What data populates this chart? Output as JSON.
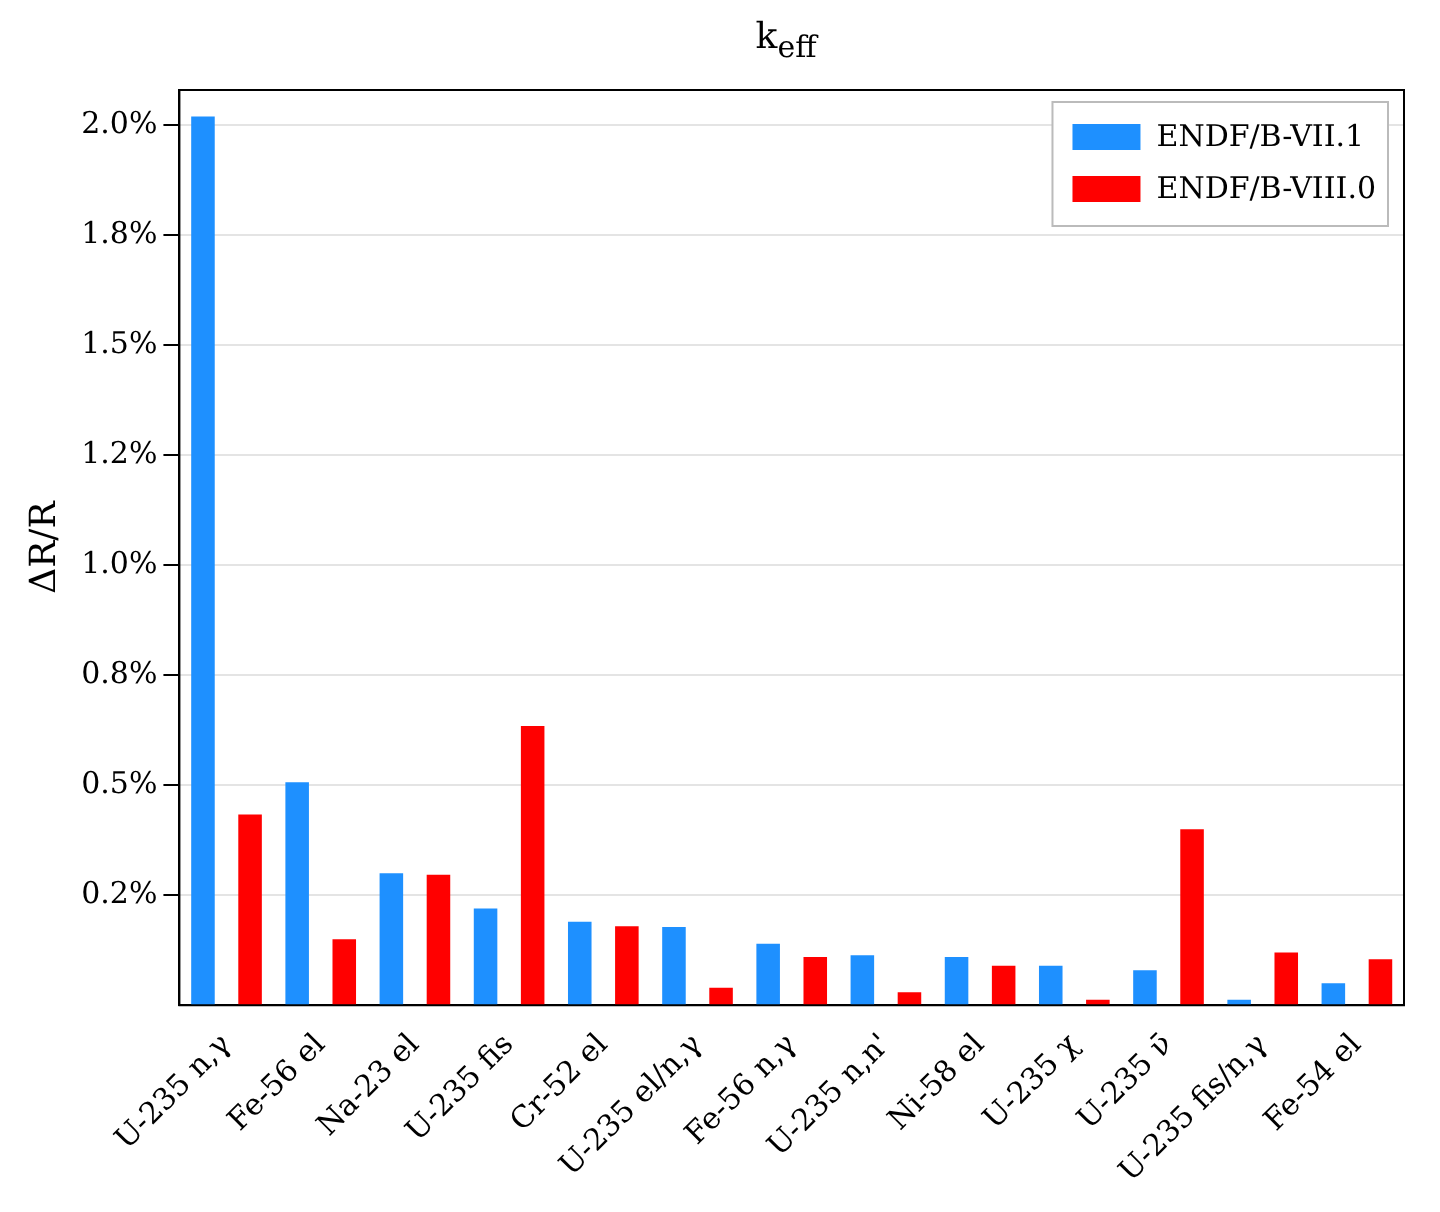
{
  "chart_data": {
    "type": "bar",
    "title": "k$_{eff}$",
    "ylabel": "ΔR/R",
    "categories": [
      "U-235 n,γ",
      "Fe-56 el",
      "Na-23 el",
      "U-235 fis",
      "Cr-52 el",
      "U-235 el/n,γ",
      "Fe-56 n,γ",
      "U-235 n,n'",
      "Ni-58 el",
      "U-235 χ",
      "U-235 ν̄",
      "U-235 fis/n,γ",
      "Fe-54 el"
    ],
    "series": [
      {
        "name": "ENDF/B-VII.1",
        "color": "#1e90ff",
        "values": [
          2.02,
          0.507,
          0.3,
          0.22,
          0.19,
          0.178,
          0.14,
          0.114,
          0.11,
          0.09,
          0.08,
          0.013,
          0.05
        ]
      },
      {
        "name": "ENDF/B-VIII.0",
        "color": "#ff0000",
        "values": [
          0.434,
          0.15,
          0.297,
          0.635,
          0.18,
          0.04,
          0.11,
          0.03,
          0.09,
          0.013,
          0.4,
          0.12,
          0.105
        ]
      }
    ],
    "ylim": [
      0,
      2.08
    ],
    "yticks": [
      {
        "value": 0.25,
        "label": "0.2%"
      },
      {
        "value": 0.5,
        "label": "0.5%"
      },
      {
        "value": 0.75,
        "label": "0.8%"
      },
      {
        "value": 1.0,
        "label": "1.0%"
      },
      {
        "value": 1.25,
        "label": "1.2%"
      },
      {
        "value": 1.5,
        "label": "1.5%"
      },
      {
        "value": 1.75,
        "label": "1.8%"
      },
      {
        "value": 2.0,
        "label": "2.0%"
      }
    ],
    "grid": "y",
    "legend": "top right"
  }
}
